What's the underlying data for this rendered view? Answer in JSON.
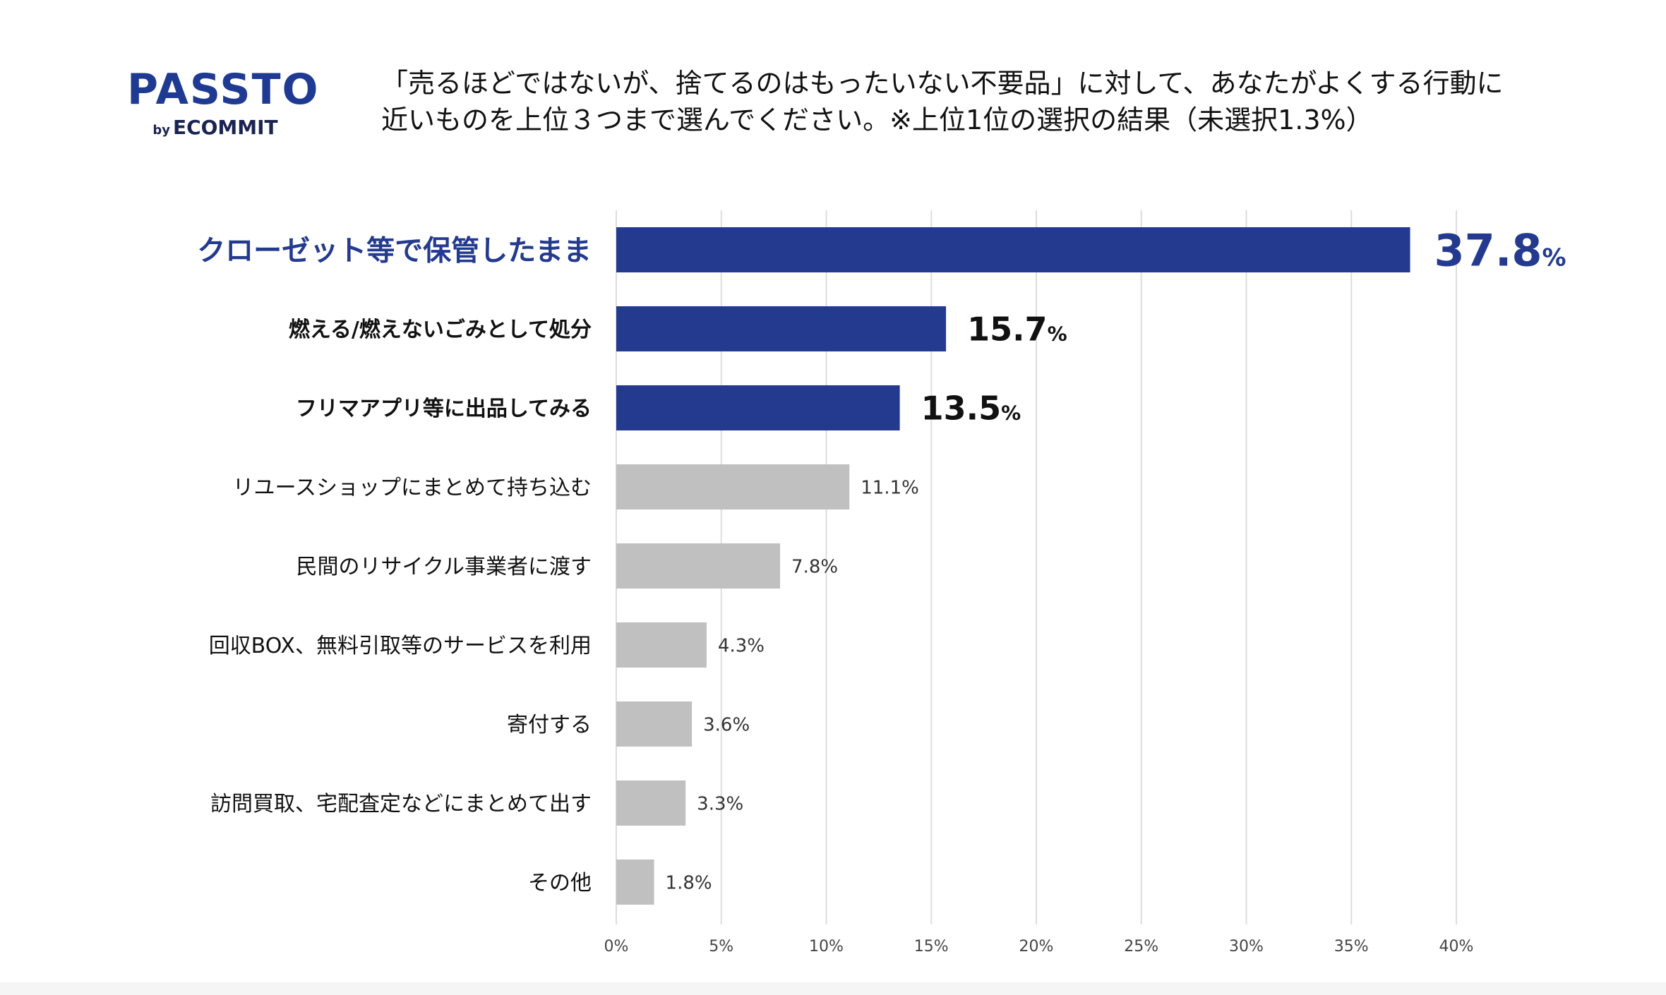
{
  "logo": {
    "main": "PASSTO",
    "by": "by",
    "sub": "ECOMMIT"
  },
  "title": {
    "line1": "「売るほどではないが、捨てるのはもったいない不要品」に対して、あなたがよくする行動に",
    "line2": "近いものを上位３つまで選んでください。※上位1位の選択の結果（未選択1.3%）"
  },
  "colors": {
    "highlight": "#233a8f",
    "other": "#c0c0c0",
    "grid": "#dddddd",
    "text": "#111111"
  },
  "chart_data": {
    "type": "bar",
    "orientation": "horizontal",
    "categories": [
      "クローゼット等で保管したまま",
      "燃える/燃えないごみとして処分",
      "フリマアプリ等に出品してみる",
      "リユースショップにまとめて持ち込む",
      "民間のリサイクル事業者に渡す",
      "回収BOX、無料引取等のサービスを利用",
      "寄付する",
      "訪問買取、宅配査定などにまとめて出す",
      "その他"
    ],
    "values": [
      37.8,
      15.7,
      13.5,
      11.1,
      7.8,
      4.3,
      3.6,
      3.3,
      1.8
    ],
    "value_labels": [
      "37.8",
      "15.7",
      "13.5",
      "11.1%",
      "7.8%",
      "4.3%",
      "3.6%",
      "3.3%",
      "1.8%"
    ],
    "highlight_count": 3,
    "percent_sign": "%",
    "xlim": [
      0,
      40
    ],
    "xticks": [
      "0%",
      "5%",
      "10%",
      "15%",
      "20%",
      "25%",
      "30%",
      "35%",
      "40%"
    ],
    "grid": true
  }
}
